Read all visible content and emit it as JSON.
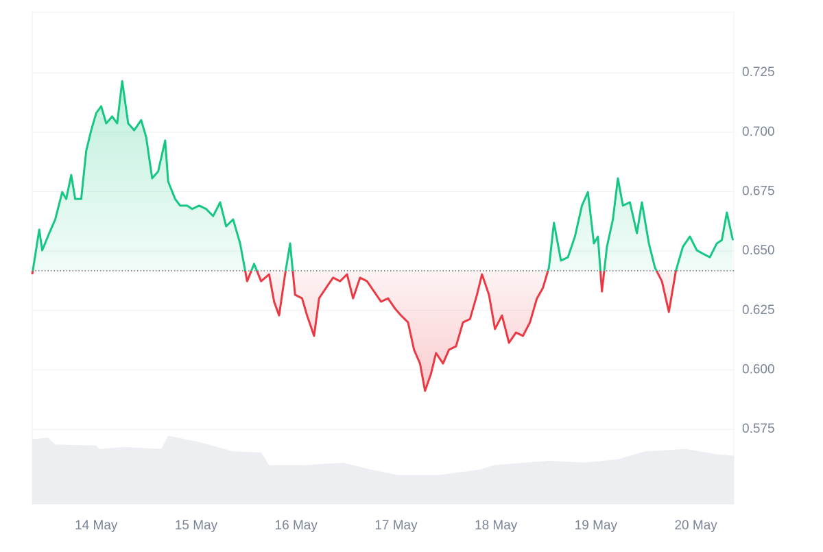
{
  "chart_data": {
    "type": "area",
    "baseline": 0.6417,
    "colors": {
      "up": "#16c784",
      "down": "#ea3943",
      "volume": "#eceef2"
    },
    "xlim": [
      13.36,
      20.38
    ],
    "ylim": [
      0.5436,
      0.7504
    ],
    "grid": true,
    "xticks": [
      {
        "value": 14,
        "label": "14 May"
      },
      {
        "value": 15,
        "label": "15 May"
      },
      {
        "value": 16,
        "label": "16 May"
      },
      {
        "value": 17,
        "label": "17 May"
      },
      {
        "value": 18,
        "label": "18 May"
      },
      {
        "value": 19,
        "label": "19 May"
      },
      {
        "value": 20,
        "label": "20 May"
      }
    ],
    "yticks": [
      0.575,
      {
        "value": 0.6,
        "label": "0.600"
      },
      0.625,
      {
        "value": 0.65,
        "label": "0.650"
      },
      0.675,
      {
        "value": 0.7,
        "label": "0.700"
      },
      0.725
    ],
    "x": [
      13.36,
      13.43,
      13.46,
      13.53,
      13.59,
      13.66,
      13.7,
      13.75,
      13.79,
      13.85,
      13.9,
      13.95,
      14.0,
      14.05,
      14.1,
      14.16,
      14.21,
      14.26,
      14.32,
      14.38,
      14.45,
      14.5,
      14.56,
      14.62,
      14.69,
      14.72,
      14.79,
      14.84,
      14.91,
      14.96,
      15.03,
      15.1,
      15.17,
      15.24,
      15.3,
      15.37,
      15.44,
      15.51,
      15.58,
      15.65,
      15.73,
      15.78,
      15.83,
      15.89,
      15.94,
      15.99,
      16.06,
      16.11,
      16.18,
      16.23,
      16.3,
      16.37,
      16.44,
      16.51,
      16.57,
      16.64,
      16.71,
      16.78,
      16.85,
      16.92,
      16.99,
      17.05,
      17.12,
      17.18,
      17.24,
      17.29,
      17.35,
      17.4,
      17.47,
      17.53,
      17.6,
      17.67,
      17.74,
      17.81,
      17.86,
      17.93,
      17.99,
      18.06,
      18.13,
      18.2,
      18.27,
      18.34,
      18.41,
      18.47,
      18.53,
      18.58,
      18.65,
      18.72,
      18.79,
      18.86,
      18.92,
      18.98,
      19.02,
      19.06,
      19.11,
      19.17,
      19.22,
      19.27,
      19.34,
      19.41,
      19.46,
      19.53,
      19.59,
      19.66,
      19.73,
      19.8,
      19.87,
      19.94,
      20.01,
      20.07,
      20.14,
      20.21,
      20.26,
      20.31,
      20.37
    ],
    "values": [
      0.6402,
      0.659,
      0.6503,
      0.6575,
      0.6633,
      0.6748,
      0.6719,
      0.682,
      0.6719,
      0.6719,
      0.6921,
      0.7008,
      0.708,
      0.7109,
      0.7037,
      0.7066,
      0.7037,
      0.7215,
      0.7037,
      0.7008,
      0.7051,
      0.6979,
      0.6806,
      0.6835,
      0.6965,
      0.6792,
      0.6719,
      0.6691,
      0.6691,
      0.6677,
      0.6691,
      0.6677,
      0.6647,
      0.6705,
      0.6604,
      0.6633,
      0.6532,
      0.6373,
      0.6446,
      0.6373,
      0.6402,
      0.6287,
      0.6229,
      0.6402,
      0.6532,
      0.6316,
      0.6301,
      0.6229,
      0.6143,
      0.6301,
      0.6345,
      0.6388,
      0.6373,
      0.6402,
      0.6301,
      0.6388,
      0.6373,
      0.633,
      0.6287,
      0.6301,
      0.6258,
      0.6229,
      0.62,
      0.6085,
      0.6027,
      0.5912,
      0.5984,
      0.6071,
      0.6027,
      0.6085,
      0.6099,
      0.62,
      0.6214,
      0.6316,
      0.6402,
      0.6316,
      0.6172,
      0.6229,
      0.6114,
      0.6157,
      0.6143,
      0.62,
      0.6301,
      0.6345,
      0.6431,
      0.6619,
      0.646,
      0.6474,
      0.6561,
      0.6691,
      0.6748,
      0.6532,
      0.6561,
      0.633,
      0.6518,
      0.6633,
      0.6806,
      0.6691,
      0.6705,
      0.6575,
      0.6705,
      0.6532,
      0.6431,
      0.6373,
      0.6244,
      0.6417,
      0.6518,
      0.6561,
      0.6503,
      0.6489,
      0.6474,
      0.6532,
      0.6546,
      0.6662,
      0.6546
    ],
    "volume": {
      "lim": [
        0,
        100
      ],
      "x": [
        13.36,
        13.52,
        13.59,
        14.0,
        14.03,
        14.27,
        14.65,
        14.72,
        15.03,
        15.37,
        15.65,
        15.73,
        16.06,
        16.47,
        16.75,
        17.02,
        17.43,
        17.84,
        17.98,
        18.53,
        18.87,
        19.22,
        19.49,
        19.9,
        20.18,
        20.38
      ],
      "values": [
        13.2,
        13.5,
        12.1,
        11.9,
        11.2,
        11.6,
        11.2,
        13.9,
        12.6,
        10.7,
        10.5,
        7.9,
        7.9,
        8.4,
        7.0,
        5.9,
        5.9,
        7.0,
        7.9,
        8.8,
        8.4,
        9.1,
        10.7,
        11.2,
        10.2,
        9.8
      ]
    }
  }
}
